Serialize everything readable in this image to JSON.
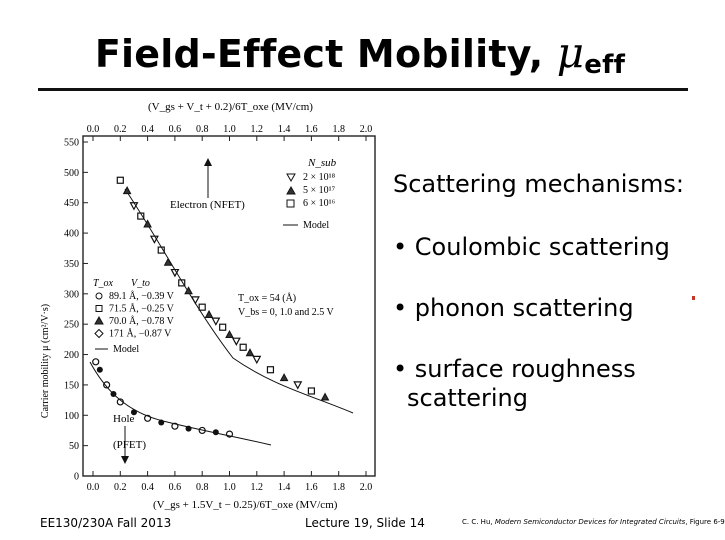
{
  "slide": {
    "title_main": "Field-Effect Mobility, ",
    "title_symbol": "μ",
    "title_sub": "eff"
  },
  "bullets": {
    "heading": "Scattering mechanisms:",
    "items": [
      "• Coulombic scattering",
      "• phonon scattering",
      "• surface roughness",
      "scattering"
    ]
  },
  "footer": {
    "course": "EE130/230A  Fall 2013",
    "lecture": "Lecture 19, Slide 14",
    "ref_author": "C. C. Hu, ",
    "ref_book": "Modern Semiconductor Devices for Integrated Circuits",
    "ref_figure": ", Figure 6-9"
  },
  "figure": {
    "top_axis_label": "(V_gs + V_t + 0.2)/6T_oxe (MV/cm)",
    "bottom_axis_label": "(V_gs + 1.5V_t − 0.25)/6T_oxe (MV/cm)",
    "y_axis_label": "Carrier mobility μ (cm²/V·s)",
    "electron_label": "Electron (NFET)",
    "hole_label_1": "Hole",
    "hole_label_2": "(PFET)",
    "nsub_header": "N_sub",
    "nsub_values": [
      "2 × 10¹⁸",
      "5 × 10¹⁷",
      "6 × 10¹⁶"
    ],
    "model_label": "Model",
    "tox_header": "T_ox",
    "vto_header": "V_to",
    "hole_legend": [
      "89.1 Å, −0.39 V",
      "71.5 Å, −0.25 V",
      "70.0 Å, −0.78 V",
      "171 Å, −0.87 V"
    ],
    "tox_note": "T_ox = 54 (Å)",
    "vbs_note": "V_bs = 0, 1.0 and 2.5 V"
  },
  "chart_data": {
    "type": "scatter",
    "title": "",
    "xlabel_top": "(Vgs + Vt + 0.2)/6Toxe (MV/cm)",
    "xlabel_bottom": "(Vgs + 1.5Vt − 0.25)/6Toxe (MV/cm)",
    "ylabel": "Carrier mobility μ (cm²/V·s)",
    "xlim": [
      0.0,
      2.0
    ],
    "ylim": [
      0,
      550
    ],
    "x_ticks": [
      "0.0",
      "0.2",
      "0.4",
      "0.6",
      "0.8",
      "1.0",
      "1.2",
      "1.4",
      "1.6",
      "1.8",
      "2.0"
    ],
    "y_ticks": [
      "0",
      "50",
      "100",
      "150",
      "200",
      "250",
      "300",
      "350",
      "400",
      "450",
      "500",
      "550"
    ],
    "series": [
      {
        "name": "Electron (NFET)",
        "x": [
          0.2,
          0.25,
          0.3,
          0.35,
          0.4,
          0.45,
          0.5,
          0.55,
          0.6,
          0.65,
          0.7,
          0.75,
          0.8,
          0.85,
          0.9,
          0.95,
          1.0,
          1.05,
          1.1,
          1.15,
          1.2,
          1.3,
          1.4,
          1.5,
          1.6,
          1.7
        ],
        "y": [
          487,
          470,
          445,
          428,
          415,
          390,
          372,
          352,
          335,
          318,
          305,
          290,
          278,
          266,
          255,
          245,
          233,
          222,
          212,
          203,
          192,
          175,
          162,
          150,
          140,
          130
        ]
      },
      {
        "name": "Hole (PFET)",
        "x": [
          0.02,
          0.05,
          0.1,
          0.15,
          0.2,
          0.3,
          0.4,
          0.5,
          0.6,
          0.7,
          0.8,
          0.9,
          1.0
        ],
        "y": [
          188,
          175,
          150,
          135,
          122,
          105,
          95,
          88,
          82,
          78,
          75,
          72,
          69
        ]
      }
    ]
  }
}
